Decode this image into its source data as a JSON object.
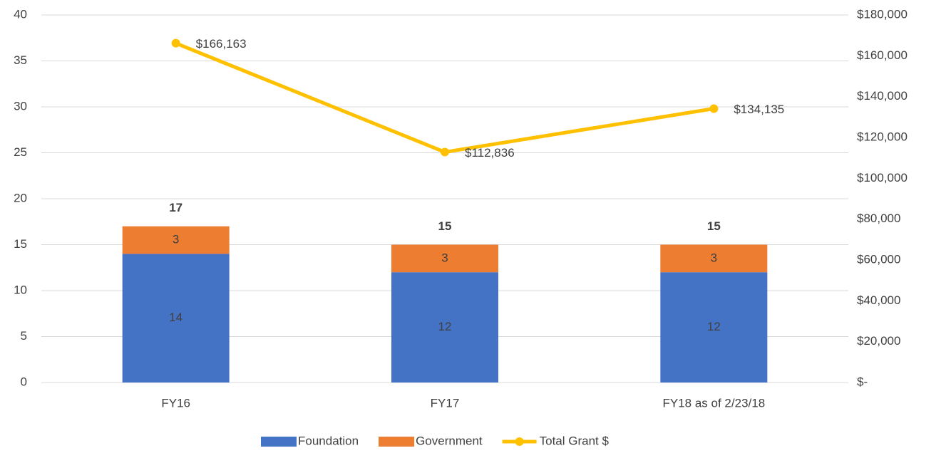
{
  "chart_data": {
    "type": "bar",
    "stacked": true,
    "categories": [
      "FY16",
      "FY17",
      "FY18 as of 2/23/18"
    ],
    "series": [
      {
        "name": "Foundation",
        "color": "#4472c4",
        "values": [
          14,
          12,
          12
        ]
      },
      {
        "name": "Government",
        "color": "#ed7d31",
        "values": [
          3,
          3,
          3
        ]
      },
      {
        "name": "Total Grant $",
        "color": "#ffc000",
        "type": "line",
        "axis": "y2",
        "values": [
          166163,
          112836,
          134135
        ],
        "value_labels": [
          "$166,163",
          "$112,836",
          "$134,135"
        ]
      }
    ],
    "total_labels": [
      17,
      15,
      15
    ],
    "ylim": [
      0,
      40
    ],
    "yticks": [
      0,
      5,
      10,
      15,
      20,
      25,
      30,
      35,
      40
    ],
    "y2lim": [
      0,
      180000
    ],
    "y2ticks": [
      {
        "value": 0,
        "label": "$-"
      },
      {
        "value": 20000,
        "label": "$20,000"
      },
      {
        "value": 40000,
        "label": "$40,000"
      },
      {
        "value": 60000,
        "label": "$60,000"
      },
      {
        "value": 80000,
        "label": "$80,000"
      },
      {
        "value": 100000,
        "label": "$100,000"
      },
      {
        "value": 120000,
        "label": "$120,000"
      },
      {
        "value": 140000,
        "label": "$140,000"
      },
      {
        "value": 160000,
        "label": "$160,000"
      },
      {
        "value": 180000,
        "label": "$180,000"
      }
    ],
    "grid": true,
    "legend": "bottom"
  }
}
